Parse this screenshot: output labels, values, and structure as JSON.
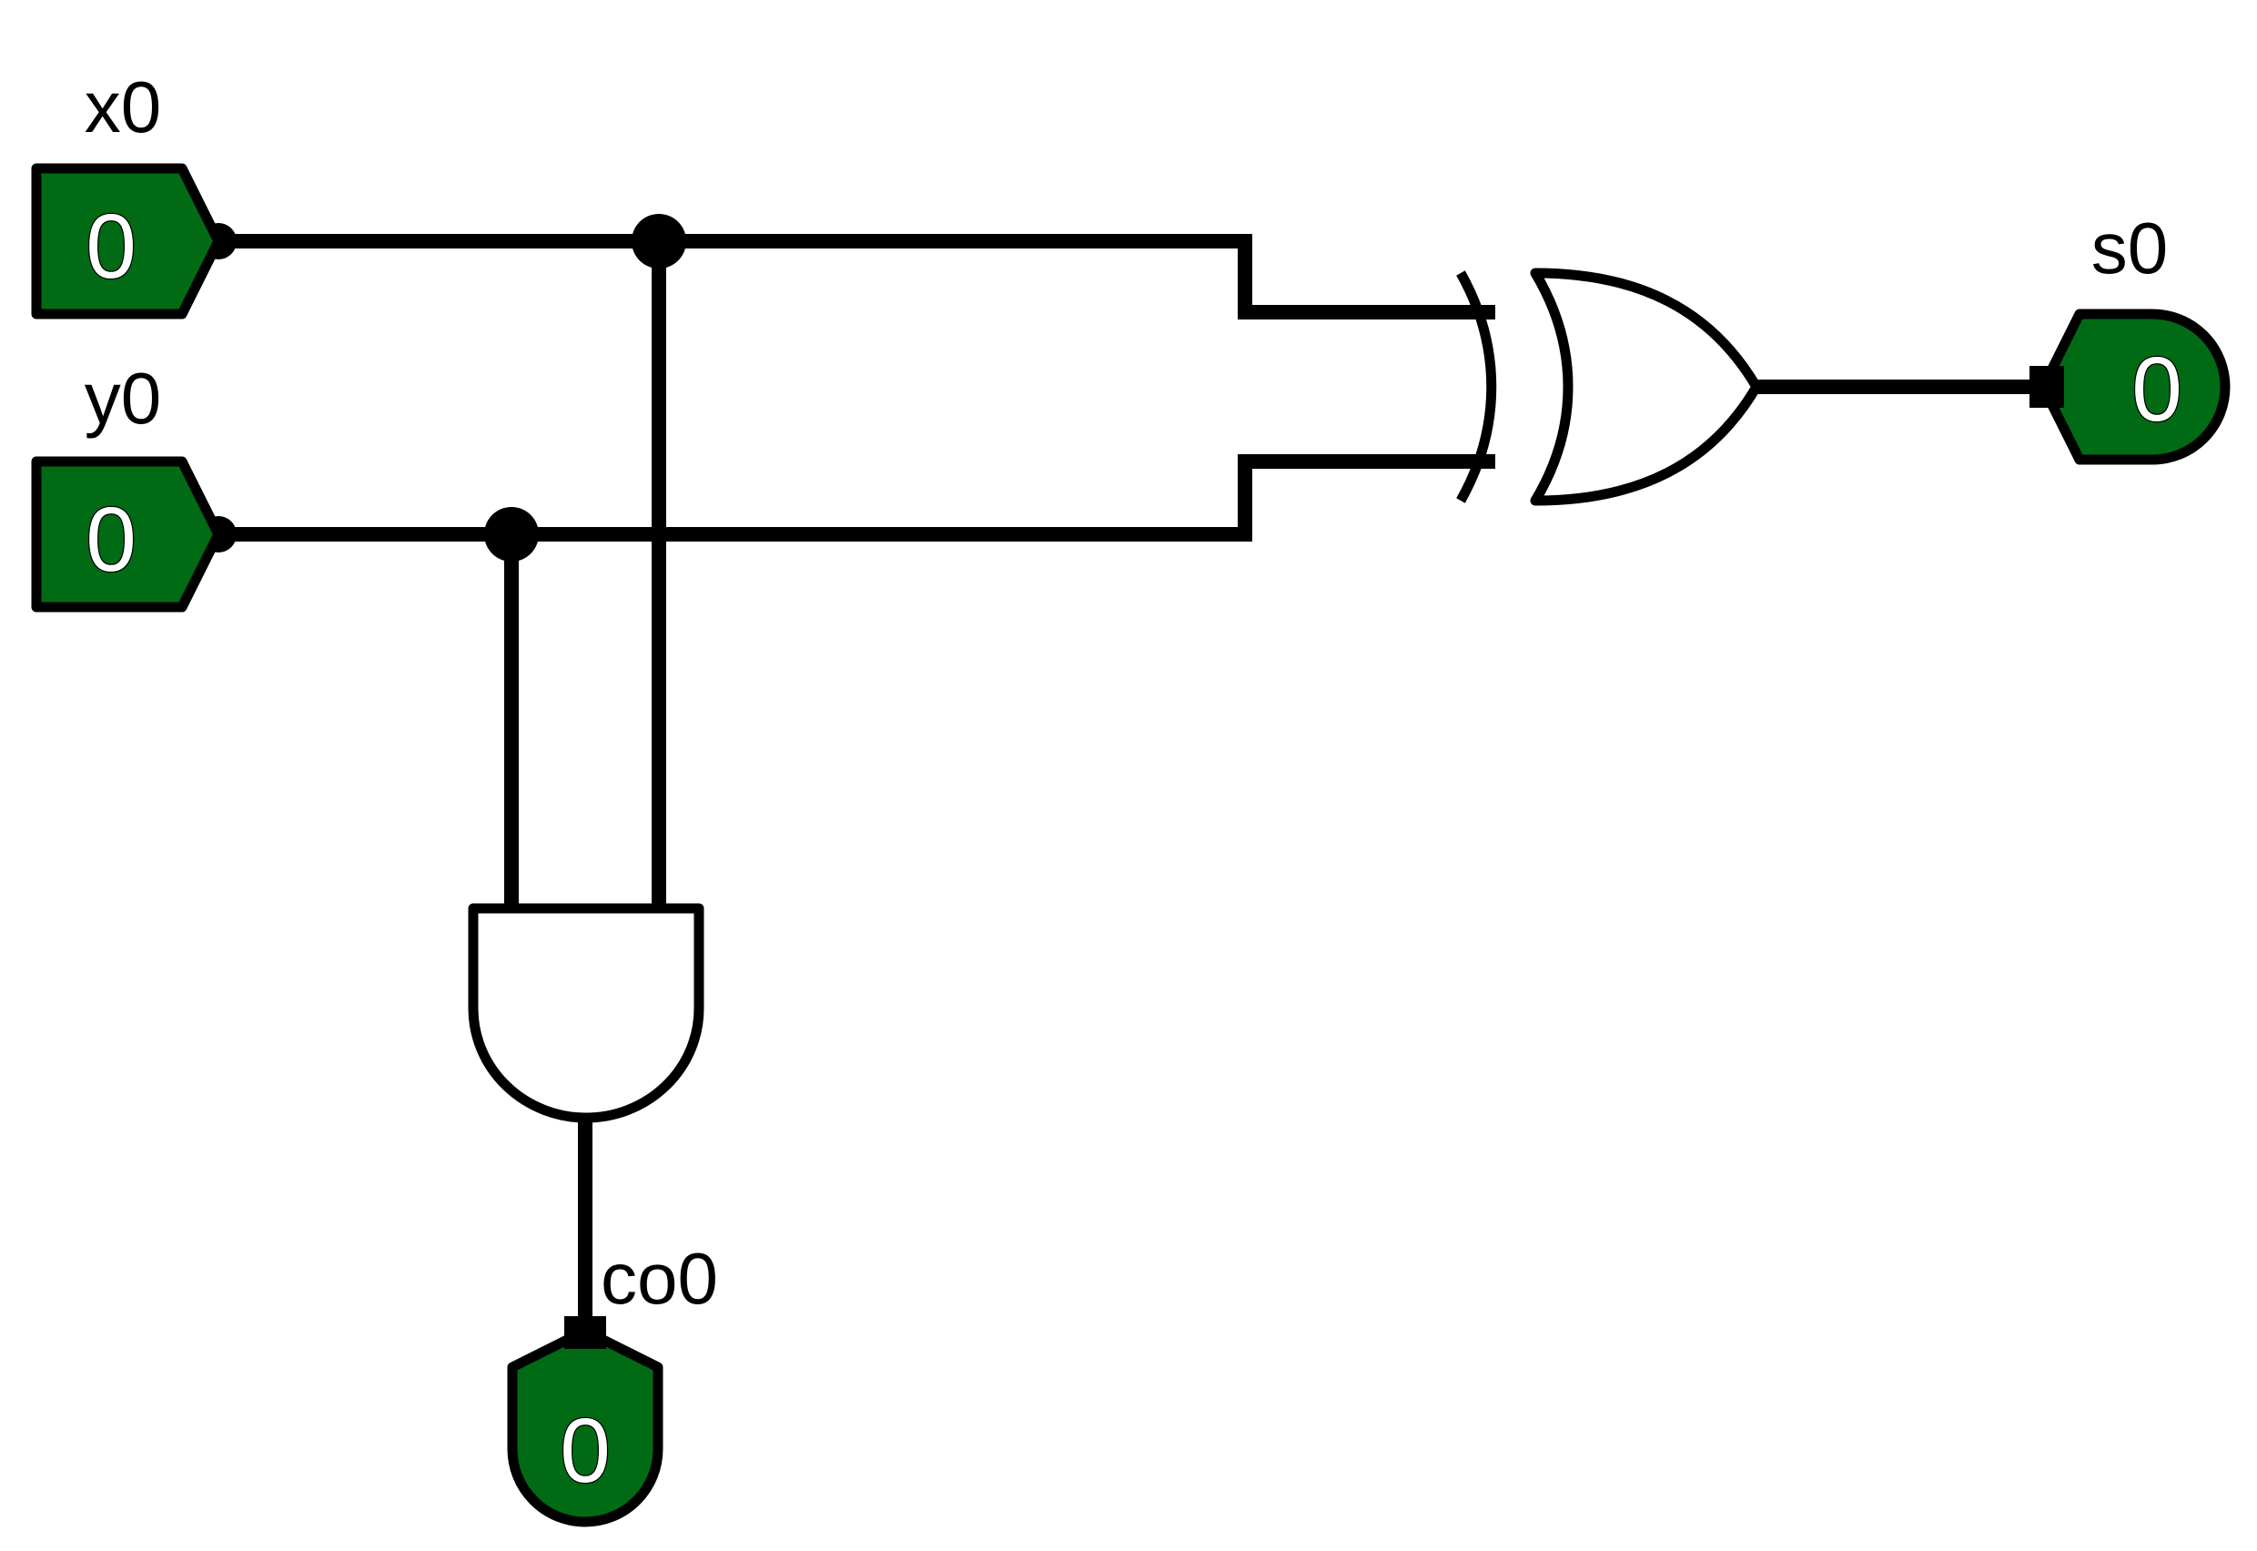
{
  "inputs": [
    {
      "label": "x0",
      "value": "0"
    },
    {
      "label": "y0",
      "value": "0"
    }
  ],
  "outputs": [
    {
      "label": "s0",
      "value": "0"
    },
    {
      "label": "co0",
      "value": "0"
    }
  ],
  "gates": [
    {
      "type": "XOR",
      "output": "s0"
    },
    {
      "type": "AND",
      "output": "co0"
    }
  ],
  "colors": {
    "pin_fill": "#006b14",
    "wire": "#000000",
    "value_text": "#ffffff"
  }
}
